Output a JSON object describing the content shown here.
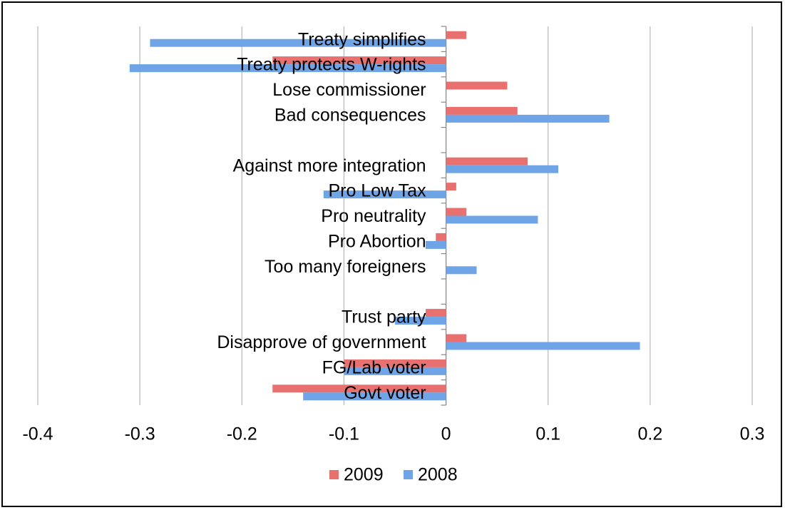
{
  "chart_data": {
    "type": "bar",
    "orientation": "horizontal",
    "categories": [
      "Treaty simplifies",
      "Treaty protects W-rights",
      "Lose commissioner",
      "Bad consequences",
      null,
      "Against more integration",
      "Pro Low Tax",
      "Pro neutrality",
      "Pro Abortion",
      "Too many foreigners",
      null,
      "Trust party",
      "Disapprove of government",
      "FG/Lab voter",
      "Govt voter"
    ],
    "series": [
      {
        "name": "2009",
        "color": "#e8716f",
        "values": [
          0.02,
          -0.17,
          0.06,
          0.07,
          null,
          0.08,
          0.01,
          0.02,
          -0.01,
          0,
          null,
          -0.02,
          0.02,
          -0.1,
          -0.17
        ]
      },
      {
        "name": "2008",
        "color": "#6fa5e6",
        "values": [
          -0.29,
          -0.31,
          0,
          0.16,
          null,
          0.11,
          -0.12,
          0.09,
          -0.02,
          0.03,
          null,
          -0.05,
          0.19,
          -0.1,
          -0.14
        ]
      }
    ],
    "xlim": [
      -0.4,
      0.3
    ],
    "xticks": [
      -0.4,
      -0.3,
      -0.2,
      -0.1,
      0,
      0.1,
      0.2,
      0.3
    ],
    "grid": true,
    "legend": "bottom"
  }
}
